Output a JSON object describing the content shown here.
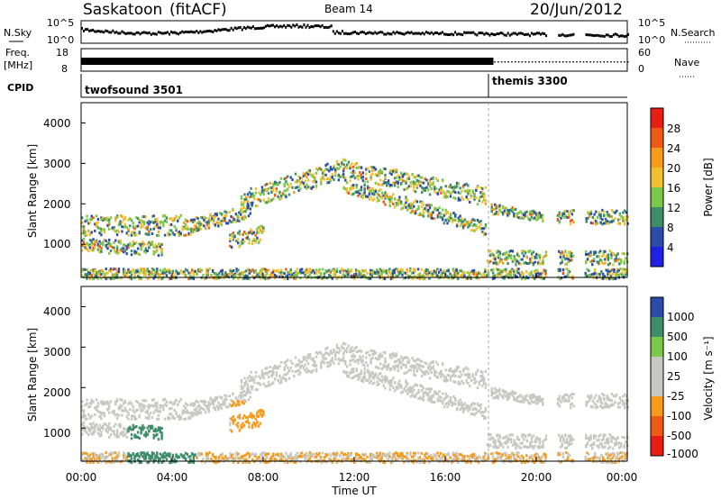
{
  "header": {
    "station": "Saskatoon",
    "method": "(fitACF)",
    "beam": "Beam 14",
    "date": "20/Jun/2012"
  },
  "colors": {
    "power": [
      "#1f1fe6",
      "#2b4ca8",
      "#3f8c6a",
      "#7cc84a",
      "#f0c030",
      "#f59a1a",
      "#f05a14",
      "#e81e14"
    ],
    "velocity": [
      "#e81e14",
      "#f05a14",
      "#f59a1a",
      "#c8c8c2",
      "#c8c8c2",
      "#7cc84a",
      "#3f8c6a",
      "#2b4ca8"
    ]
  },
  "chart_data": [
    {
      "type": "line",
      "panel": "N.Sky / N.Search",
      "left_label": "N.Sky",
      "right_label": "N.Search",
      "left_ticks": [
        "10^5",
        "10^0"
      ],
      "right_ticks": [
        "10^5",
        "10^0"
      ],
      "x_range_hours": [
        0,
        24
      ]
    },
    {
      "type": "line",
      "panel": "Freq / Nave",
      "left_label_1": "Freq.",
      "left_label_2": "[MHz]",
      "right_label": "Nave",
      "left_ticks": [
        "18",
        "8"
      ],
      "right_ticks": [
        "60",
        "0"
      ],
      "x_range_hours": [
        0,
        24
      ]
    },
    {
      "type": "table",
      "panel": "CPID",
      "label": "CPID",
      "segments": [
        {
          "name": "twofsound 3501",
          "start_hour": 0,
          "end_hour": 18
        },
        {
          "name": "themis 3300",
          "start_hour": 18,
          "end_hour": 24
        }
      ]
    },
    {
      "type": "heatmap",
      "panel": "Power",
      "ylabel": "Slant Range [km]",
      "yticks": [
        "1000",
        "2000",
        "3000",
        "4000"
      ],
      "ylim": [
        180,
        4500
      ],
      "colorbar_label": "Power [dB]",
      "colorbar_ticks": [
        "4",
        "8",
        "12",
        "16",
        "20",
        "24",
        "28"
      ]
    },
    {
      "type": "heatmap",
      "panel": "Velocity",
      "ylabel": "Slant Range [km]",
      "yticks": [
        "1000",
        "2000",
        "3000",
        "4000"
      ],
      "ylim": [
        180,
        4500
      ],
      "colorbar_label": "Velocity [m s⁻¹]",
      "colorbar_ticks": [
        "1000",
        "500",
        "100",
        "25",
        "-25",
        "-100",
        "-500",
        "-1000"
      ]
    }
  ],
  "x_axis": {
    "label": "Time UT",
    "ticks": [
      "00:00",
      "04:00",
      "08:00",
      "12:00",
      "16:00",
      "20:00",
      "00:00"
    ]
  }
}
